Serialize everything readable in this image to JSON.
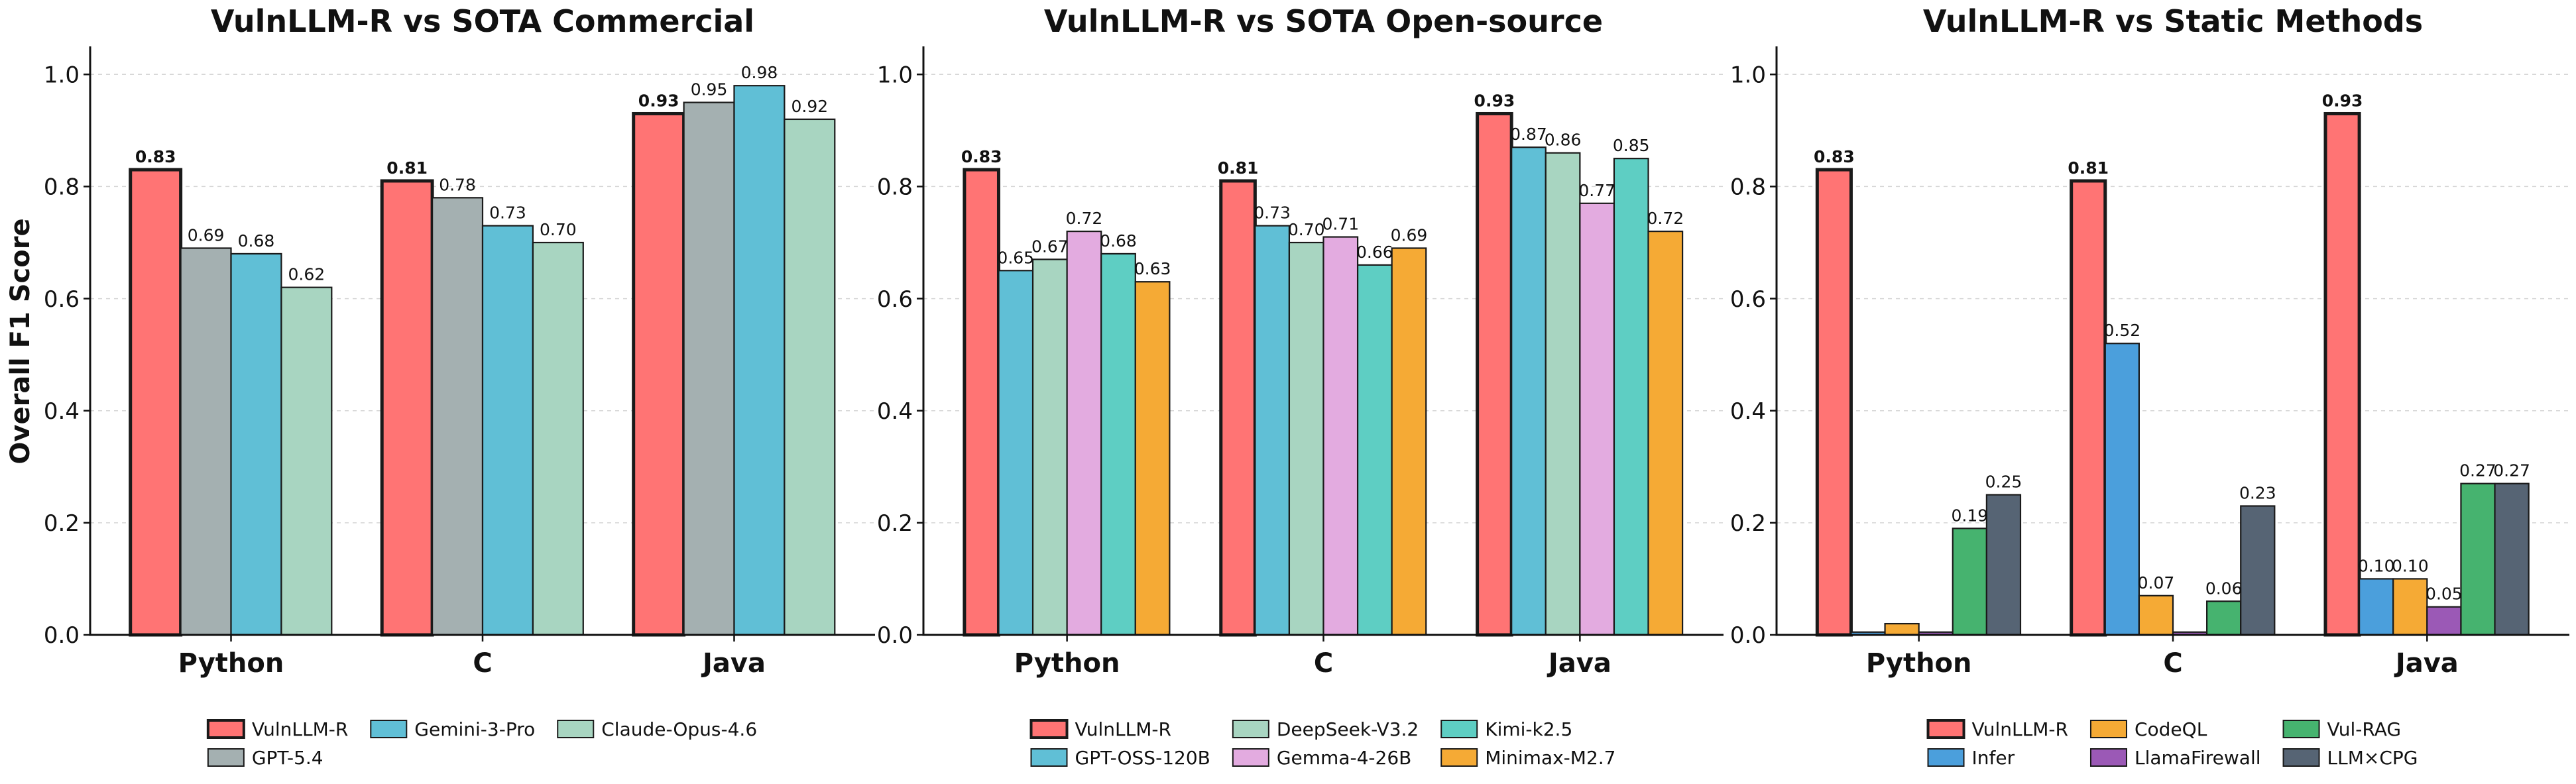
{
  "chart_data": [
    {
      "type": "bar",
      "title": "VulnLLM-R vs SOTA Commercial",
      "xlabel": "",
      "ylabel": "Overall F1 Score",
      "categories": [
        "Python",
        "C",
        "Java"
      ],
      "ylim": [
        0,
        1.05
      ],
      "yticks": [
        "0.0",
        "0.2",
        "0.4",
        "0.6",
        "0.8",
        "1.0"
      ],
      "grid": true,
      "legend": {
        "placement": "bottom-center",
        "order": [
          0,
          2,
          3,
          1
        ]
      },
      "series": [
        {
          "name": "VulnLLM-R",
          "values": [
            0.83,
            0.81,
            0.93
          ],
          "labels": [
            "0.83",
            "0.81",
            "0.93"
          ],
          "color": "#ff7474",
          "highlight": true
        },
        {
          "name": "GPT-5.4",
          "values": [
            0.69,
            0.78,
            0.95
          ],
          "labels": [
            "0.69",
            "0.78",
            "0.95"
          ],
          "color": "#a4b0b1"
        },
        {
          "name": "Gemini-3-Pro",
          "values": [
            0.68,
            0.73,
            0.98
          ],
          "labels": [
            "0.68",
            "0.73",
            "0.98"
          ],
          "color": "#60bfd6"
        },
        {
          "name": "Claude-Opus-4.6",
          "values": [
            0.62,
            0.7,
            0.92
          ],
          "labels": [
            "0.62",
            "0.70",
            "0.92"
          ],
          "color": "#a8d5c1"
        }
      ]
    },
    {
      "type": "bar",
      "title": "VulnLLM-R vs SOTA Open-source",
      "xlabel": "",
      "ylabel": "",
      "categories": [
        "Python",
        "C",
        "Java"
      ],
      "ylim": [
        0,
        1.05
      ],
      "yticks": [
        "0.0",
        "0.2",
        "0.4",
        "0.6",
        "0.8",
        "1.0"
      ],
      "grid": true,
      "legend": {
        "placement": "bottom-center",
        "order": [
          0,
          2,
          4,
          1,
          3,
          5
        ]
      },
      "series": [
        {
          "name": "VulnLLM-R",
          "values": [
            0.83,
            0.81,
            0.93
          ],
          "labels": [
            "0.83",
            "0.81",
            "0.93"
          ],
          "color": "#ff7474",
          "highlight": true
        },
        {
          "name": "GPT-OSS-120B",
          "values": [
            0.65,
            0.73,
            0.87
          ],
          "labels": [
            "0.65",
            "0.73",
            "0.87"
          ],
          "color": "#60bfd6"
        },
        {
          "name": "DeepSeek-V3.2",
          "values": [
            0.67,
            0.7,
            0.86
          ],
          "labels": [
            "0.67",
            "0.70",
            "0.86"
          ],
          "color": "#a8d5c1"
        },
        {
          "name": "Gemma-4-26B",
          "values": [
            0.72,
            0.71,
            0.77
          ],
          "labels": [
            "0.72",
            "0.71",
            "0.77"
          ],
          "color": "#e3abe0"
        },
        {
          "name": "Kimi-k2.5",
          "values": [
            0.68,
            0.66,
            0.85
          ],
          "labels": [
            "0.68",
            "0.66",
            "0.85"
          ],
          "color": "#5ecec3"
        },
        {
          "name": "Minimax-M2.7",
          "values": [
            0.63,
            0.69,
            0.72
          ],
          "labels": [
            "0.63",
            "0.69",
            "0.72"
          ],
          "color": "#f5aa35"
        }
      ]
    },
    {
      "type": "bar",
      "title": "VulnLLM-R vs Static Methods",
      "xlabel": "",
      "ylabel": "",
      "categories": [
        "Python",
        "C",
        "Java"
      ],
      "ylim": [
        0,
        1.05
      ],
      "yticks": [
        "0.0",
        "0.2",
        "0.4",
        "0.6",
        "0.8",
        "1.0"
      ],
      "grid": true,
      "legend": {
        "placement": "bottom-center",
        "order": [
          0,
          2,
          4,
          1,
          3,
          5
        ]
      },
      "series": [
        {
          "name": "VulnLLM-R",
          "values": [
            0.83,
            0.81,
            0.93
          ],
          "labels": [
            "0.83",
            "0.81",
            "0.93"
          ],
          "color": "#ff7474",
          "highlight": true
        },
        {
          "name": "Infer",
          "values": [
            0.005,
            0.52,
            0.1
          ],
          "labels": [
            null,
            "0.52",
            "0.10"
          ],
          "color": "#4b9fdc"
        },
        {
          "name": "CodeQL",
          "values": [
            0.02,
            0.07,
            0.1
          ],
          "labels": [
            null,
            "0.07",
            "0.10"
          ],
          "color": "#f5aa35"
        },
        {
          "name": "LlamaFirewall",
          "values": [
            0.005,
            0.005,
            0.05
          ],
          "labels": [
            null,
            null,
            "0.05"
          ],
          "color": "#9b59b6"
        },
        {
          "name": "Vul-RAG",
          "values": [
            0.19,
            0.06,
            0.27
          ],
          "labels": [
            "0.19",
            "0.06",
            "0.27"
          ],
          "color": "#46b36f"
        },
        {
          "name": "LLM×CPG",
          "values": [
            0.25,
            0.23,
            0.27
          ],
          "labels": [
            "0.25",
            "0.23",
            "0.27"
          ],
          "color": "#566474"
        }
      ]
    }
  ]
}
